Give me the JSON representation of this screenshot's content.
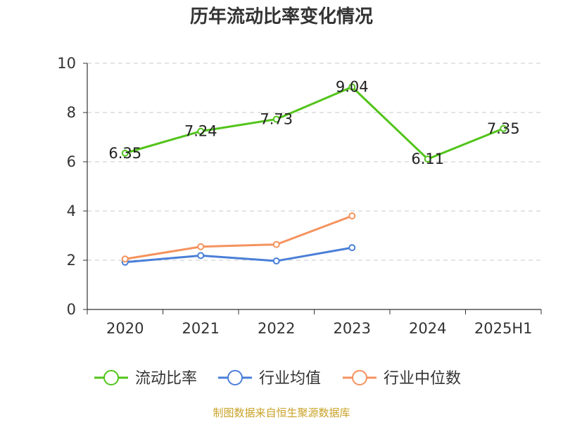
{
  "title": "历年流动比率变化情况",
  "source": "制图数据来自恒生聚源数据库",
  "chart_data": {
    "type": "line",
    "categories": [
      "2020",
      "2021",
      "2022",
      "2023",
      "2024",
      "2025H1"
    ],
    "ylim": [
      0,
      10
    ],
    "yticks": [
      0,
      2,
      4,
      6,
      8,
      10
    ],
    "grid": true,
    "legend_position": "bottom",
    "series": [
      {
        "name": "流动比率",
        "color": "#52c41a",
        "values": [
          6.35,
          7.24,
          7.73,
          9.04,
          6.11,
          7.35
        ],
        "labels": [
          "6.35",
          "7.24",
          "7.73",
          "9.04",
          "6.11",
          "7.35"
        ]
      },
      {
        "name": "行业均值",
        "color": "#4a7fd8",
        "values": [
          1.92,
          2.19,
          1.97,
          2.51,
          null,
          null
        ]
      },
      {
        "name": "行业中位数",
        "color": "#f4935e",
        "values": [
          2.05,
          2.55,
          2.64,
          3.8,
          null,
          null
        ]
      }
    ]
  }
}
